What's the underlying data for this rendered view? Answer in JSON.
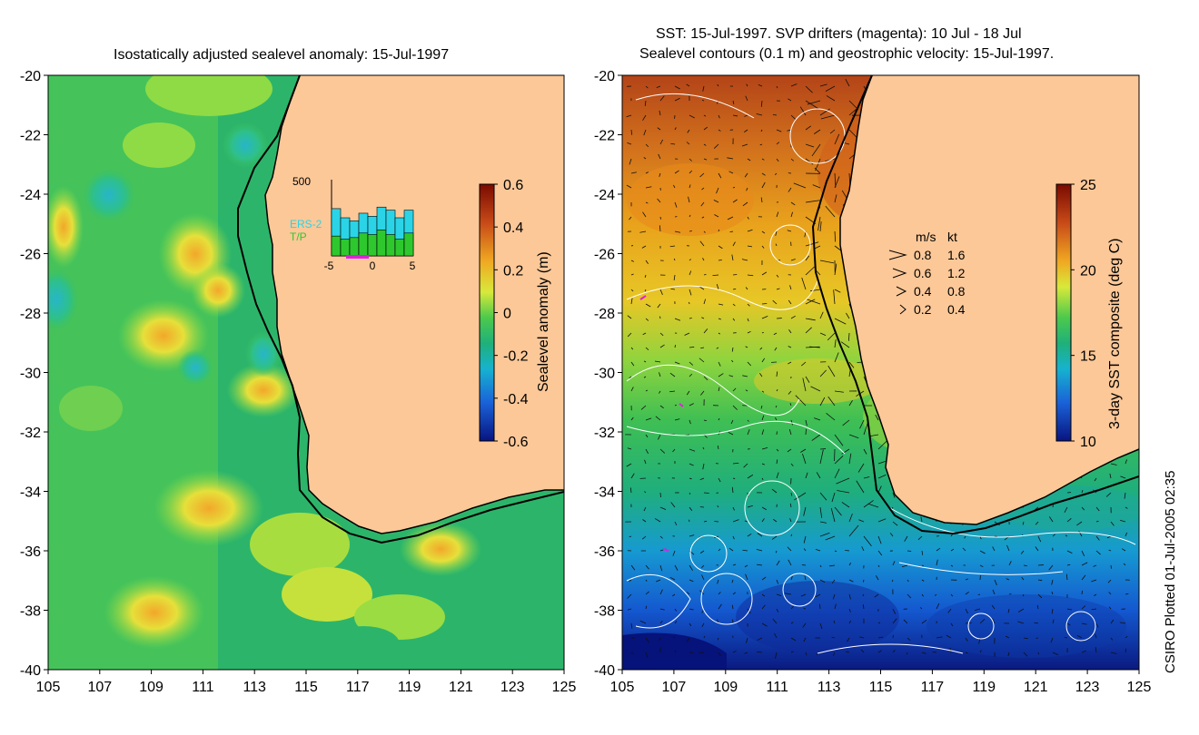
{
  "left_panel": {
    "title": "Isostatically adjusted sealevel anomaly: 15-Jul-1997",
    "colorbar": {
      "label": "Sealevel anomaly (m)",
      "ticks": [
        "0.6",
        "0.4",
        "0.2",
        "0",
        "-0.2",
        "-0.4",
        "-0.6"
      ],
      "range": [
        -0.6,
        0.6
      ],
      "colors": [
        "#6b0000",
        "#b0311a",
        "#d76a1c",
        "#f3b01f",
        "#d8e93a",
        "#63d14a",
        "#1fb36c",
        "#15b2c9",
        "#1a66d8",
        "#0a1a8a"
      ]
    },
    "inset": {
      "ymax_label": "500",
      "x_labels": [
        "-5",
        "0",
        "5"
      ],
      "legend": [
        "ERS-2",
        "T/P"
      ],
      "ers2_color": "#2ad4e6",
      "tp_color": "#2ec82e",
      "ers2_counts": [
        310,
        250,
        230,
        280,
        260,
        320,
        300,
        250,
        300
      ],
      "tp_counts": [
        130,
        110,
        120,
        150,
        140,
        170,
        140,
        110,
        150
      ],
      "ymax": 500
    }
  },
  "right_panel": {
    "title_line1": "SST: 15-Jul-1997. SVP drifters (magenta): 10 Jul - 18 Jul",
    "title_line2": "Sealevel contours (0.1 m) and geostrophic velocity: 15-Jul-1997.",
    "colorbar": {
      "label": "3-day SST composite (deg C)",
      "ticks": [
        "25",
        "20",
        "15",
        "10"
      ],
      "range": [
        10,
        25
      ],
      "colors": [
        "#6b0000",
        "#b0311a",
        "#e06d1a",
        "#f3b01f",
        "#d8e93a",
        "#63d14a",
        "#1fb36c",
        "#15b2c9",
        "#1a66d8",
        "#0a1a8a"
      ]
    },
    "velocity_legend": {
      "header_ms": "m/s",
      "header_kt": "kt",
      "rows": [
        {
          "ms": "0.8",
          "kt": "1.6"
        },
        {
          "ms": "0.6",
          "kt": "1.2"
        },
        {
          "ms": "0.4",
          "kt": "0.8"
        },
        {
          "ms": "0.2",
          "kt": "0.4"
        }
      ]
    }
  },
  "axes": {
    "lon_ticks": [
      "105",
      "107",
      "109",
      "111",
      "113",
      "115",
      "117",
      "119",
      "121",
      "123",
      "125"
    ],
    "lat_ticks": [
      "-20",
      "-22",
      "-24",
      "-26",
      "-28",
      "-30",
      "-32",
      "-34",
      "-36",
      "-38",
      "-40"
    ],
    "lon_range": [
      105,
      125
    ],
    "lat_range": [
      -40,
      -20
    ]
  },
  "credit": "CSIRO Plotted 01-Jul-2005 02:35",
  "land_color": "#fcc898",
  "coast_color": "#000000"
}
